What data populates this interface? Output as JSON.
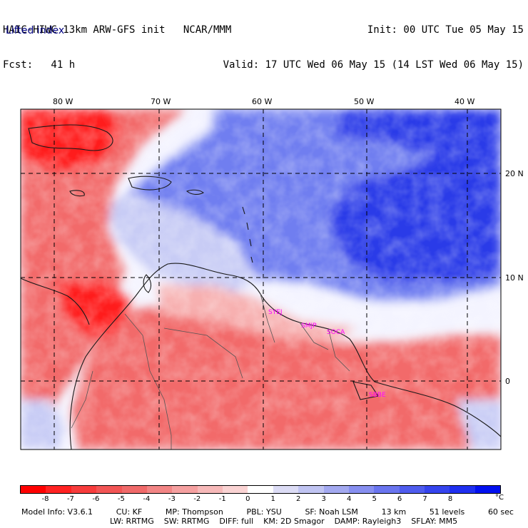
{
  "header": {
    "title_line": "HAIC-HIWC 13km ARW-GFS init   NCAR/MMM",
    "fcst_line": "Fcst:   41 h",
    "init_line": "Init: 00 UTC Tue 05 May 15",
    "valid_line": "Valid: 17 UTC Wed 06 May 15 (14 LST Wed 06 May 15)",
    "field_name": "Lifted index"
  },
  "map": {
    "longitude_labels": [
      "80 W",
      "70 W",
      "60 W",
      "50 W",
      "40 W"
    ],
    "latitude_labels": [
      "20 N",
      "10 N",
      "0"
    ],
    "stations": [
      "SYEJ",
      "SMJP",
      "SOCA",
      "SBBE"
    ],
    "colors": {
      "strong_unstable": "#ff1a1a",
      "unstable": "#f26a6a",
      "weak_unstable": "#f7b0b0",
      "neutral": "#f4f4ff",
      "weak_stable": "#c8ccf5",
      "stable": "#6f7ef0",
      "strong_stable": "#2a3ae8"
    }
  },
  "colorbar": {
    "labels": [
      "-8",
      "-7",
      "-6",
      "-5",
      "-4",
      "-3",
      "-2",
      "-1",
      "0",
      "1",
      "2",
      "3",
      "4",
      "5",
      "6",
      "7",
      "8"
    ],
    "unit": "°C",
    "colors": [
      "#ff0000",
      "#ff2222",
      "#f73c3c",
      "#f25555",
      "#f06a6a",
      "#f28585",
      "#f5a0a0",
      "#f7b9b9",
      "#fad3d3",
      "#ffffff",
      "#dcdcf5",
      "#c0c4f2",
      "#a3a9f0",
      "#878ff0",
      "#6a75ef",
      "#4f5cee",
      "#3544ee",
      "#1f2ff0",
      "#0010f0"
    ]
  },
  "footer": {
    "model_info": "Model Info: V3.6.1",
    "cu": "CU: KF",
    "mp": "MP: Thompson",
    "pbl": "PBL: YSU",
    "sf": "SF: Noah LSM",
    "res": "13 km",
    "levels": "51 levels",
    "timestep": "60 sec",
    "lw": "LW: RRTMG",
    "sw": "SW: RRTMG",
    "diff": "DIFF: full",
    "km": "KM: 2D Smagor",
    "damp": "DAMP: Rayleigh3",
    "sflay": "SFLAY: MM5"
  }
}
